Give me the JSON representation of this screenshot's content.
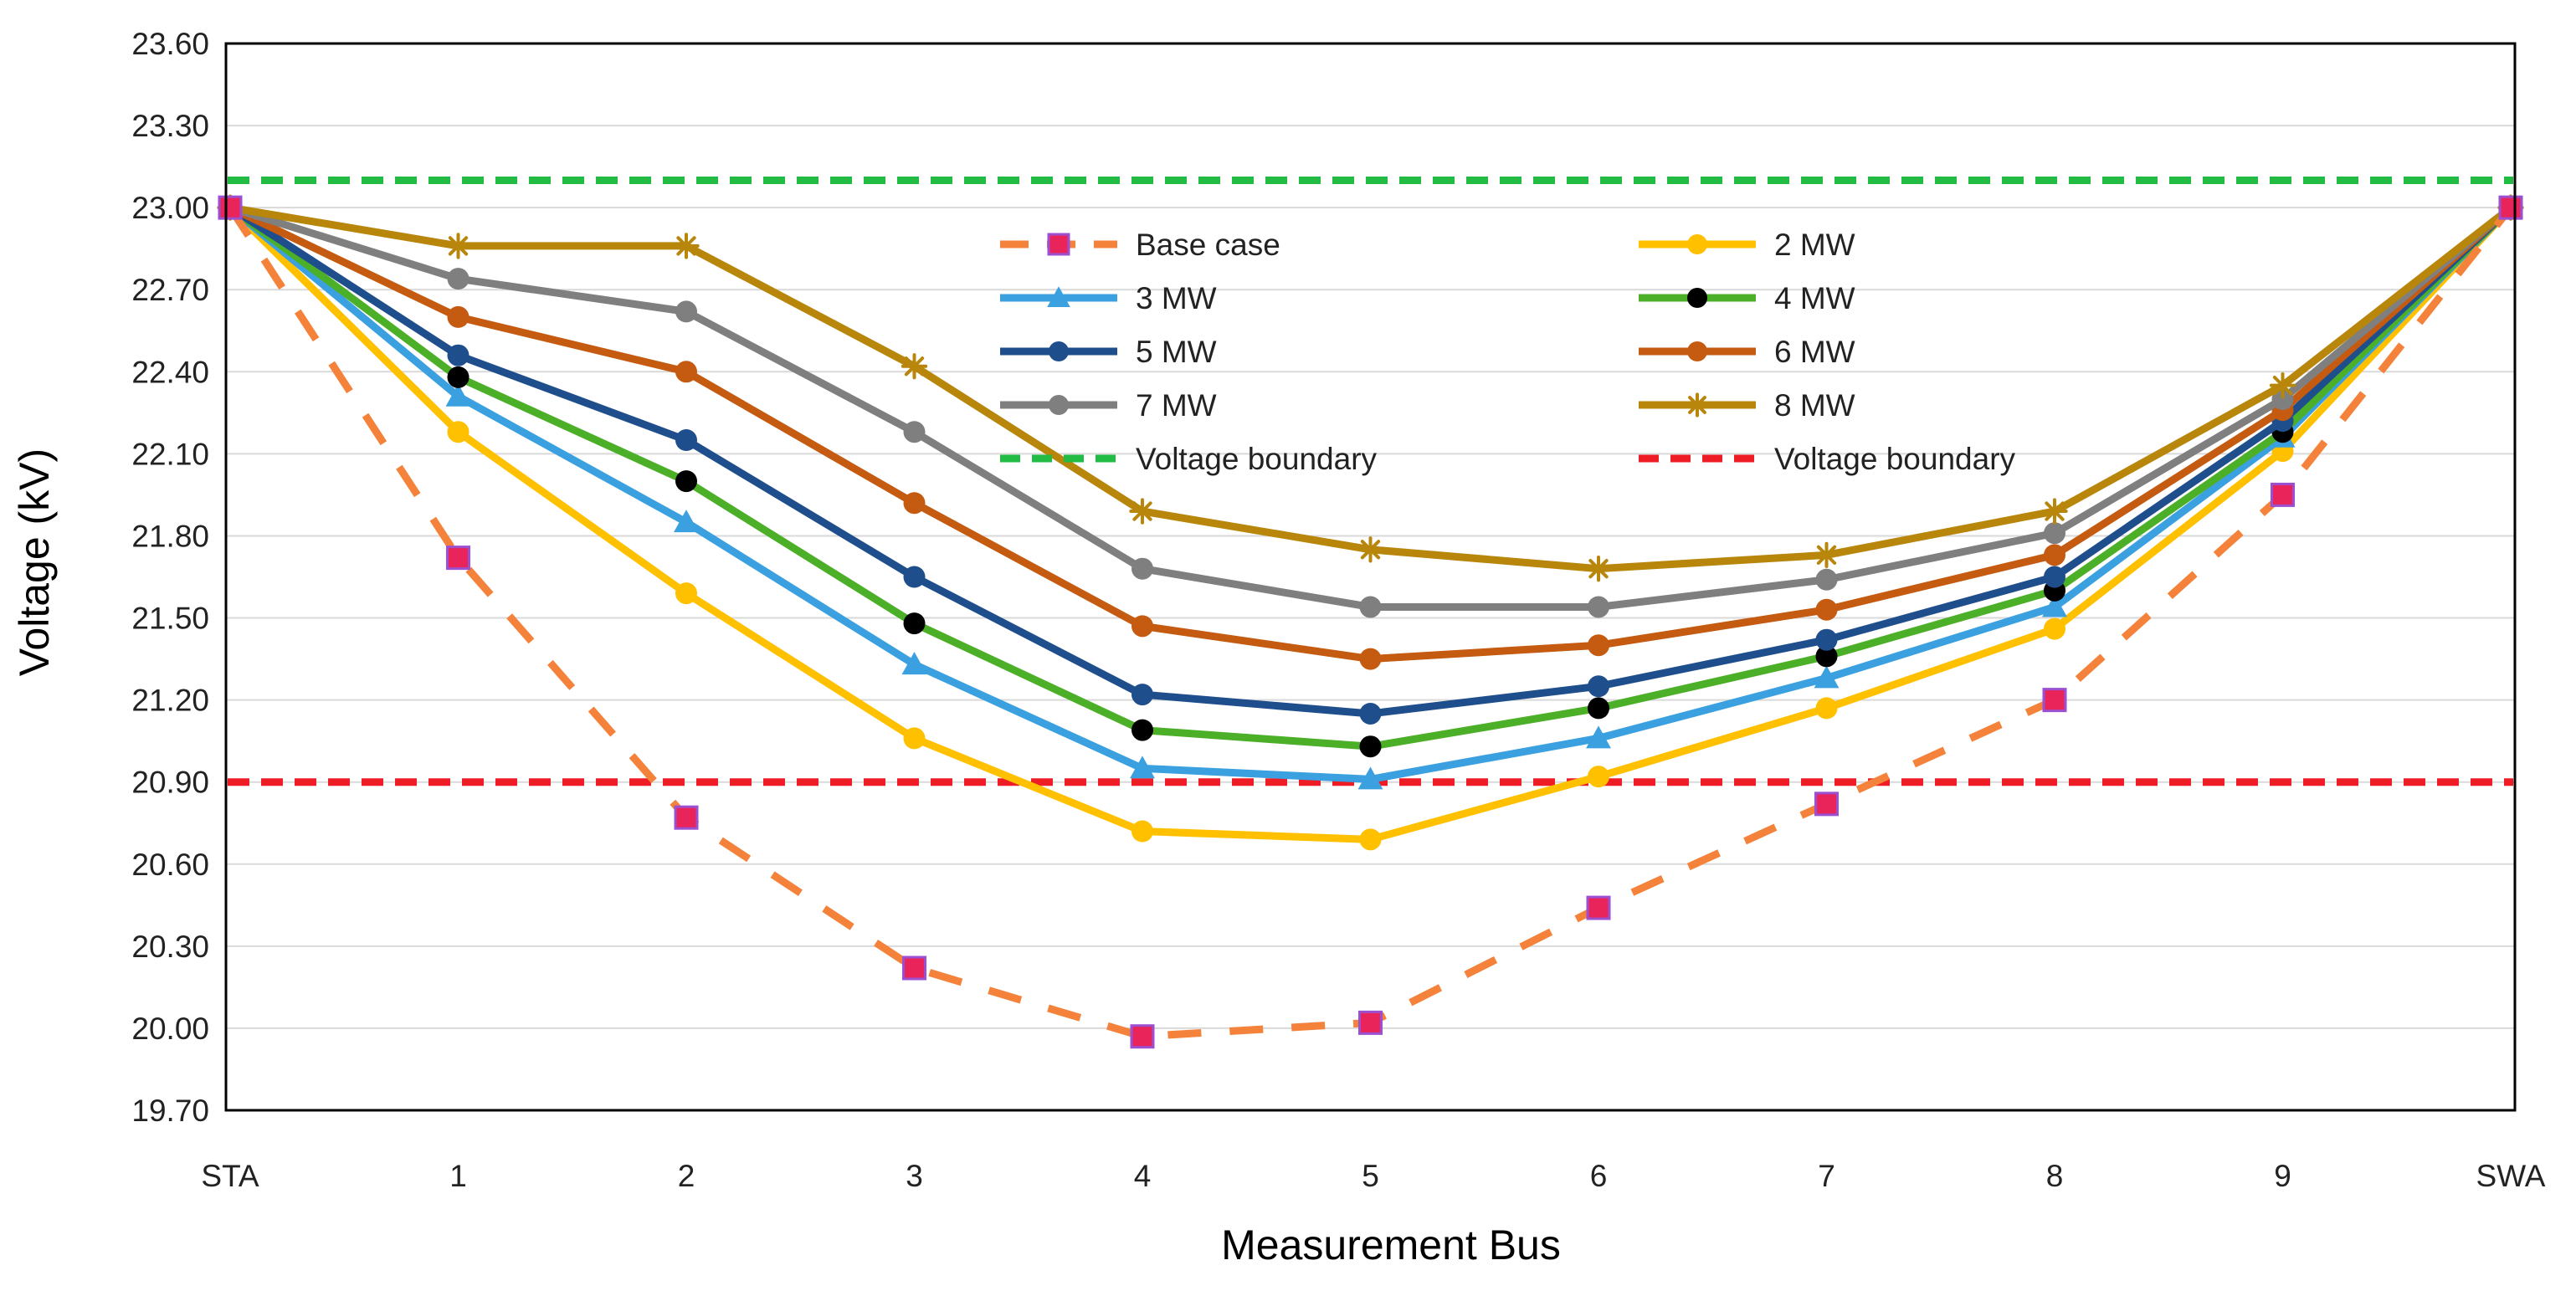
{
  "chart_data": {
    "type": "line",
    "title": "",
    "xlabel": "Measurement Bus",
    "ylabel": "Voltage (kV)",
    "categories": [
      "STA",
      "1",
      "2",
      "3",
      "4",
      "5",
      "6",
      "7",
      "8",
      "9",
      "SWA"
    ],
    "ylim": [
      19.7,
      23.6
    ],
    "yticks": [
      "19.70",
      "20.00",
      "20.30",
      "20.60",
      "20.90",
      "21.20",
      "21.50",
      "21.80",
      "22.10",
      "22.40",
      "22.70",
      "23.00",
      "23.30",
      "23.60"
    ],
    "grid": true,
    "legend_position": "top-center",
    "series": [
      {
        "name": "Base case",
        "color": "#F4823A",
        "marker": "square",
        "marker_color": "#E8245B",
        "marker_edge": "#9B4FD1",
        "dashed": true,
        "values": [
          23.0,
          21.72,
          20.77,
          20.22,
          19.97,
          20.02,
          20.44,
          20.82,
          21.2,
          21.95,
          23.0
        ]
      },
      {
        "name": "2 MW",
        "color": "#FFC000",
        "marker": "circle",
        "marker_color": "#FFC000",
        "dashed": false,
        "values": [
          23.0,
          22.18,
          21.59,
          21.06,
          20.72,
          20.69,
          20.92,
          21.17,
          21.46,
          22.11,
          23.0
        ]
      },
      {
        "name": "3 MW",
        "color": "#3AA0E0",
        "marker": "triangle",
        "marker_color": "#3AA0E0",
        "dashed": false,
        "values": [
          23.0,
          22.31,
          21.85,
          21.33,
          20.95,
          20.91,
          21.06,
          21.28,
          21.54,
          22.16,
          23.0
        ]
      },
      {
        "name": "4 MW",
        "color": "#4CAF28",
        "marker": "circle",
        "marker_color": "#000000",
        "dashed": false,
        "values": [
          23.0,
          22.38,
          22.0,
          21.48,
          21.09,
          21.03,
          21.17,
          21.36,
          21.6,
          22.18,
          23.0
        ]
      },
      {
        "name": "5 MW",
        "color": "#1F4E8C",
        "marker": "circle",
        "marker_color": "#1F4E8C",
        "dashed": false,
        "values": [
          23.0,
          22.46,
          22.15,
          21.65,
          21.22,
          21.15,
          21.25,
          21.42,
          21.65,
          22.22,
          23.0
        ]
      },
      {
        "name": "6 MW",
        "color": "#C55A11",
        "marker": "circle",
        "marker_color": "#C55A11",
        "dashed": false,
        "values": [
          23.0,
          22.6,
          22.4,
          21.92,
          21.47,
          21.35,
          21.4,
          21.53,
          21.73,
          22.26,
          23.0
        ]
      },
      {
        "name": "7 MW",
        "color": "#7F7F7F",
        "marker": "circle",
        "marker_color": "#7F7F7F",
        "dashed": false,
        "values": [
          23.0,
          22.74,
          22.62,
          22.18,
          21.68,
          21.54,
          21.54,
          21.64,
          21.81,
          22.3,
          23.0
        ]
      },
      {
        "name": "8 MW",
        "color": "#B8860B",
        "marker": "star",
        "marker_color": "#B8860B",
        "dashed": false,
        "values": [
          23.0,
          22.86,
          22.86,
          22.42,
          21.89,
          21.75,
          21.68,
          21.73,
          21.89,
          22.35,
          23.0
        ]
      }
    ],
    "reference_lines": [
      {
        "name": "Voltage boundary",
        "value": 23.1,
        "color": "#22BB44"
      },
      {
        "name": "Voltage boundary",
        "value": 20.9,
        "color": "#EE1C25"
      }
    ],
    "legend_order": [
      "Base case",
      "2 MW",
      "3 MW",
      "4 MW",
      "5 MW",
      "6 MW",
      "7 MW",
      "8 MW",
      "ref-0",
      "ref-1"
    ]
  }
}
